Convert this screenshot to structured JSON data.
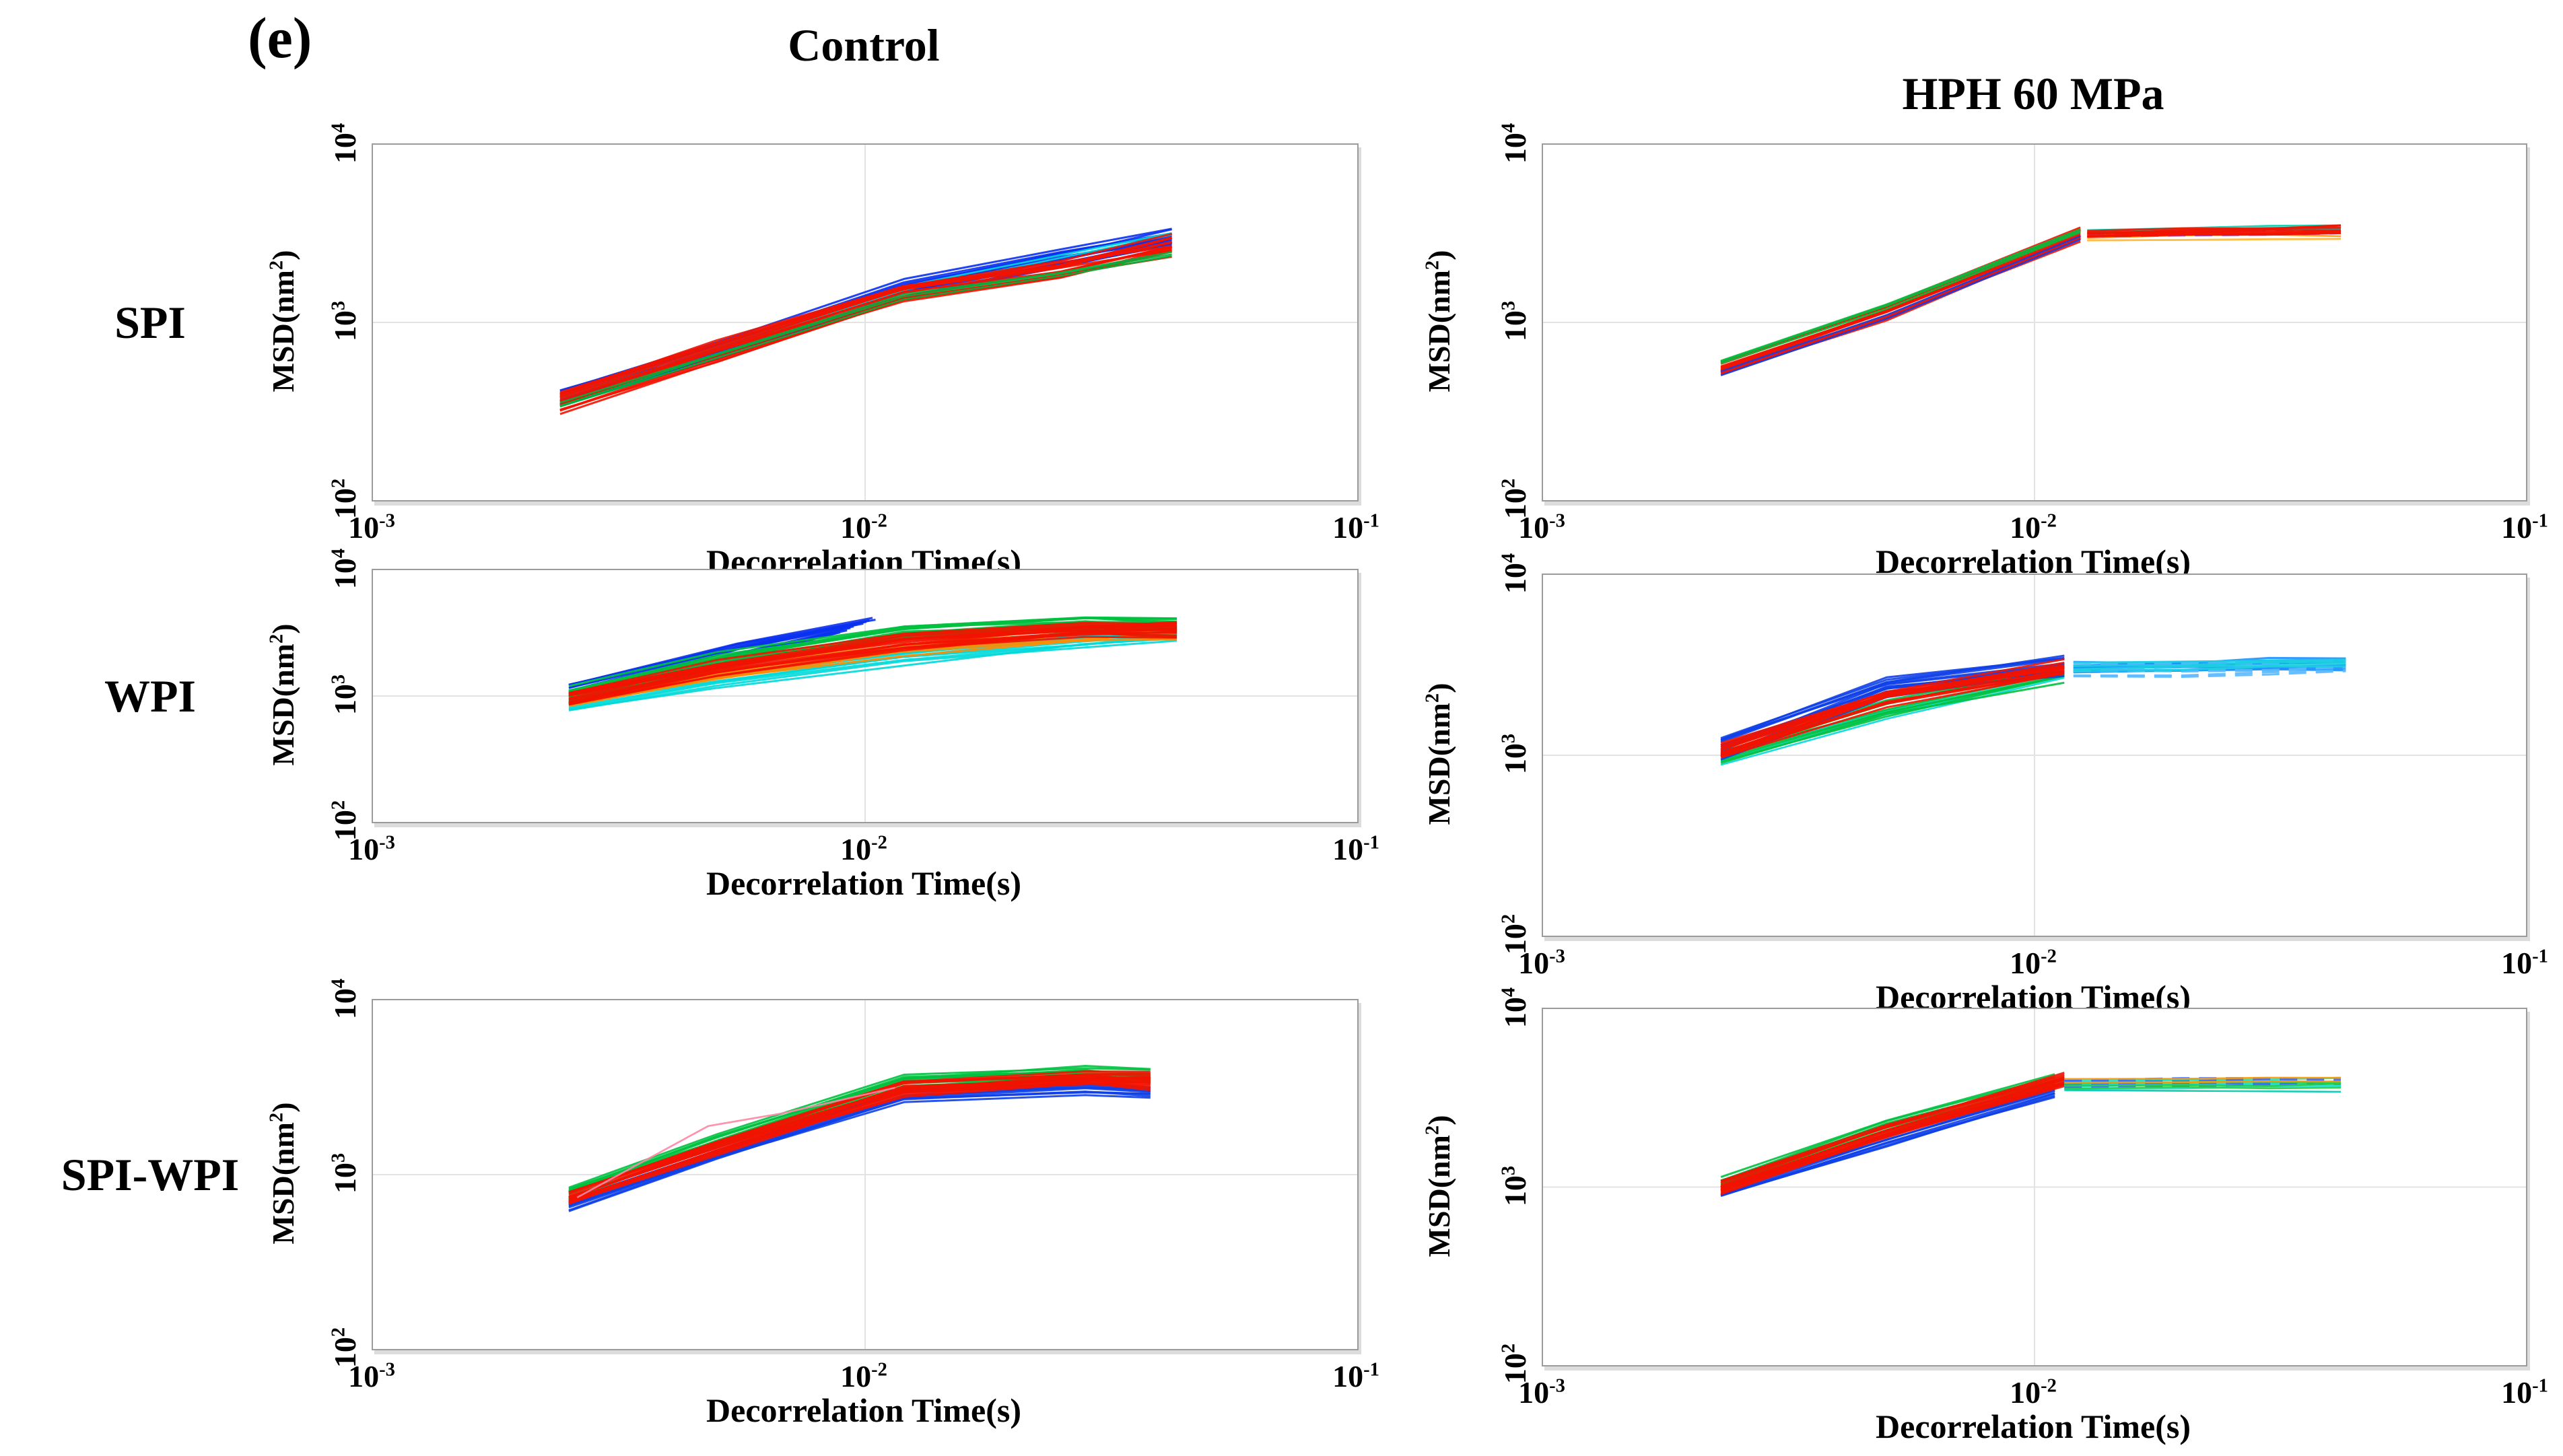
{
  "figure": {
    "panel_label": "(e)",
    "background": "#ffffff",
    "column_titles": [
      "Control",
      "HPH 60 MPa"
    ],
    "row_labels": [
      "SPI",
      "WPI",
      "SPI-WPI"
    ]
  },
  "axis_defaults": {
    "xlabel": "Decorrelation Time(s)",
    "ylabel": "MSD(nm²)",
    "ylabel_parts": {
      "base": "MSD(nm",
      "exp": "2",
      "suffix": ")"
    },
    "x_ticks": [
      {
        "base": "10",
        "exp": "-3"
      },
      {
        "base": "10",
        "exp": "-2"
      },
      {
        "base": "10",
        "exp": "-1"
      }
    ],
    "y_ticks": [
      {
        "base": "10",
        "exp": "2"
      },
      {
        "base": "10",
        "exp": "3"
      },
      {
        "base": "10",
        "exp": "4"
      }
    ],
    "xlim": [
      0.001,
      0.1
    ],
    "ylim": [
      100,
      10000
    ],
    "grid_x": 0.01,
    "grid_y": 1000,
    "frame_color": "#9b9b9b",
    "grid_color": "#e3e3e3"
  },
  "chart_data": [
    {
      "id": "spi-control",
      "row": "SPI",
      "column": "Control",
      "type": "line",
      "x_scale": "log",
      "y_scale": "log",
      "xlim": [
        0.001,
        0.1
      ],
      "ylim": [
        100,
        10000
      ],
      "xlabel": "Decorrelation Time(s)",
      "ylabel": "MSD(nm²)",
      "grid": true,
      "bands": [
        {
          "name": "blue-bundle",
          "color": "#0a31f0",
          "lines": 16,
          "spread": 0.045,
          "x": [
            0.0024,
            0.005,
            0.012,
            0.025,
            0.042
          ],
          "y": [
            375,
            705,
            1520,
            2250,
            3000
          ]
        },
        {
          "name": "cyan-line",
          "color": "#00d9d9",
          "lines": 2,
          "spread": 0.008,
          "x": [
            0.0024,
            0.005,
            0.012,
            0.025,
            0.042
          ],
          "y": [
            380,
            715,
            1555,
            2350,
            3150
          ]
        },
        {
          "name": "red-bundle",
          "color": "#f21300",
          "lines": 16,
          "spread": 0.05,
          "x": [
            0.0024,
            0.005,
            0.012,
            0.025,
            0.042
          ],
          "y": [
            360,
            685,
            1450,
            2000,
            2700
          ]
        },
        {
          "name": "green-edge",
          "color": "#00b33c",
          "lines": 3,
          "spread": 0.012,
          "x": [
            0.0024,
            0.005,
            0.012,
            0.025,
            0.042
          ],
          "y": [
            342,
            655,
            1390,
            1880,
            2420
          ]
        }
      ]
    },
    {
      "id": "spi-hph",
      "row": "SPI",
      "column": "HPH 60 MPa",
      "type": "line",
      "x_scale": "log",
      "y_scale": "log",
      "xlim": [
        0.001,
        0.1
      ],
      "ylim": [
        100,
        10000
      ],
      "xlabel": "Decorrelation Time(s)",
      "ylabel": "MSD(nm²)",
      "grid": true,
      "bands": [
        {
          "name": "red-bundle",
          "color": "#f21300",
          "lines": 18,
          "spread": 0.035,
          "x": [
            0.0023,
            0.005,
            0.0124
          ],
          "y": [
            555,
            1140,
            3120
          ]
        },
        {
          "name": "green-edge",
          "color": "#00c13f",
          "lines": 3,
          "spread": 0.01,
          "x": [
            0.0023,
            0.005,
            0.0124
          ],
          "y": [
            600,
            1230,
            3290
          ]
        },
        {
          "name": "blue-edge",
          "color": "#1040e8",
          "lines": 2,
          "spread": 0.01,
          "x": [
            0.0023,
            0.005,
            0.0124
          ],
          "y": [
            515,
            1075,
            2990
          ]
        },
        {
          "name": "tail-teal",
          "color": "#00cdb0",
          "lines": 3,
          "spread": 0.012,
          "x": [
            0.0128,
            0.02,
            0.03,
            0.042
          ],
          "y": [
            3250,
            3320,
            3380,
            3420
          ]
        },
        {
          "name": "tail-orange",
          "color": "#ff9a00",
          "lines": 3,
          "spread": 0.015,
          "x": [
            0.0128,
            0.02,
            0.03,
            0.042
          ],
          "y": [
            3000,
            3050,
            3080,
            3100
          ]
        },
        {
          "name": "tail-violet",
          "color": "#7a5cff",
          "lines": 2,
          "spread": 0.01,
          "dash": true,
          "x": [
            0.0128,
            0.02,
            0.03,
            0.042
          ],
          "y": [
            3090,
            3140,
            3190,
            3230
          ]
        },
        {
          "name": "tail-red",
          "color": "#f21300",
          "lines": 8,
          "spread": 0.02,
          "x": [
            0.0128,
            0.02,
            0.03,
            0.042
          ],
          "y": [
            3140,
            3220,
            3280,
            3330
          ]
        },
        {
          "name": "tail-lightorange",
          "color": "#ffc04d",
          "lines": 1,
          "spread": 0,
          "x": [
            0.0128,
            0.02,
            0.03,
            0.042
          ],
          "y": [
            2890,
            2915,
            2945,
            2960
          ]
        }
      ]
    },
    {
      "id": "wpi-control",
      "row": "WPI",
      "column": "Control",
      "type": "line",
      "x_scale": "log",
      "y_scale": "log",
      "xlim": [
        0.001,
        0.1
      ],
      "ylim": [
        100,
        10000
      ],
      "xlabel": "Decorrelation Time(s)",
      "ylabel": "MSD(nm²)",
      "grid": true,
      "bands": [
        {
          "name": "blue-bundle",
          "color": "#0a31f0",
          "lines": 14,
          "spread": 0.06,
          "taper": 0.18,
          "x": [
            0.0025,
            0.0055,
            0.0105
          ],
          "y": [
            1070,
            2250,
            3550
          ]
        },
        {
          "name": "cyan-bundle",
          "color": "#00d9d9",
          "lines": 10,
          "spread": 0.055,
          "x": [
            0.0025,
            0.005,
            0.012,
            0.028,
            0.043
          ],
          "y": [
            840,
            1360,
            2080,
            2820,
            3120
          ]
        },
        {
          "name": "orange-bundle",
          "color": "#ff8c00",
          "lines": 8,
          "spread": 0.045,
          "x": [
            0.0025,
            0.005,
            0.012,
            0.028,
            0.043
          ],
          "y": [
            905,
            1500,
            2380,
            3080,
            3180
          ]
        },
        {
          "name": "green-bundle",
          "color": "#00c13f",
          "lines": 14,
          "spread": 0.055,
          "x": [
            0.0025,
            0.005,
            0.012,
            0.028,
            0.043
          ],
          "y": [
            1010,
            1880,
            3250,
            3780,
            3600
          ]
        },
        {
          "name": "red-bundle",
          "color": "#f21300",
          "lines": 16,
          "spread": 0.05,
          "x": [
            0.0025,
            0.005,
            0.012,
            0.028,
            0.043
          ],
          "y": [
            950,
            1640,
            2680,
            3380,
            3380
          ]
        }
      ]
    },
    {
      "id": "wpi-hph",
      "row": "WPI",
      "column": "HPH 60 MPa",
      "type": "line",
      "x_scale": "log",
      "y_scale": "log",
      "xlim": [
        0.001,
        0.1
      ],
      "ylim": [
        100,
        10000
      ],
      "xlabel": "Decorrelation Time(s)",
      "ylabel": "MSD(nm²)",
      "grid": true,
      "bands": [
        {
          "name": "cyan-edge",
          "color": "#00d9d9",
          "lines": 3,
          "spread": 0.02,
          "x": [
            0.0023,
            0.005,
            0.0115
          ],
          "y": [
            925,
            1680,
            2780
          ]
        },
        {
          "name": "green-bundle",
          "color": "#00c13f",
          "lines": 8,
          "spread": 0.04,
          "x": [
            0.0023,
            0.005,
            0.0115
          ],
          "y": [
            975,
            1820,
            2870
          ]
        },
        {
          "name": "blue-bundle",
          "color": "#1040e8",
          "lines": 14,
          "spread": 0.05,
          "x": [
            0.0023,
            0.005,
            0.0115
          ],
          "y": [
            1110,
            2400,
            3120
          ]
        },
        {
          "name": "red-bundle",
          "color": "#f21300",
          "lines": 14,
          "spread": 0.04,
          "x": [
            0.0023,
            0.005,
            0.0115
          ],
          "y": [
            1050,
            2100,
            3000
          ]
        },
        {
          "name": "tail-dodgerblue",
          "color": "#1e90ff",
          "lines": 10,
          "spread": 0.03,
          "x": [
            0.012,
            0.02,
            0.03,
            0.043
          ],
          "y": [
            3020,
            3080,
            3140,
            3200
          ]
        },
        {
          "name": "tail-lightblue",
          "color": "#57b8ff",
          "lines": 8,
          "spread": 0.035,
          "dash": true,
          "x": [
            0.012,
            0.02,
            0.03,
            0.043
          ],
          "y": [
            2940,
            3000,
            3080,
            3140
          ]
        },
        {
          "name": "tail-cyan",
          "color": "#19cfe0",
          "lines": 4,
          "spread": 0.02,
          "x": [
            0.012,
            0.02,
            0.03,
            0.043
          ],
          "y": [
            3100,
            3160,
            3220,
            3270
          ]
        }
      ]
    },
    {
      "id": "spiwpi-control",
      "row": "SPI-WPI",
      "column": "Control",
      "type": "line",
      "x_scale": "log",
      "y_scale": "log",
      "xlim": [
        0.001,
        0.1
      ],
      "ylim": [
        100,
        10000
      ],
      "xlabel": "Decorrelation Time(s)",
      "ylabel": "MSD(nm²)",
      "grid": true,
      "bands": [
        {
          "name": "blue-bundle",
          "color": "#1040e8",
          "lines": 10,
          "spread": 0.03,
          "x": [
            0.0025,
            0.005,
            0.012,
            0.028,
            0.038
          ],
          "y": [
            665,
            1300,
            2850,
            3120,
            2980
          ]
        },
        {
          "name": "green-bundle",
          "color": "#00c13f",
          "lines": 12,
          "spread": 0.035,
          "x": [
            0.0025,
            0.005,
            0.012,
            0.028,
            0.038
          ],
          "y": [
            790,
            1560,
            3420,
            3800,
            3650
          ]
        },
        {
          "name": "red-bundle",
          "color": "#f21300",
          "lines": 18,
          "spread": 0.04,
          "x": [
            0.0025,
            0.005,
            0.012,
            0.028,
            0.038
          ],
          "y": [
            725,
            1420,
            3120,
            3550,
            3480
          ]
        },
        {
          "name": "pink-outlier",
          "color": "#ff85a6",
          "lines": 1,
          "spread": 0,
          "x": [
            0.0026,
            0.0048,
            0.0068,
            0.0115
          ],
          "y": [
            740,
            1900,
            2250,
            3150
          ]
        }
      ]
    },
    {
      "id": "spiwpi-hph",
      "row": "SPI-WPI",
      "column": "HPH 60 MPa",
      "type": "line",
      "x_scale": "log",
      "y_scale": "log",
      "xlim": [
        0.001,
        0.1
      ],
      "ylim": [
        100,
        10000
      ],
      "xlabel": "Decorrelation Time(s)",
      "ylabel": "MSD(nm²)",
      "grid": true,
      "bands": [
        {
          "name": "blue-bundle",
          "color": "#1040e8",
          "lines": 10,
          "spread": 0.03,
          "x": [
            0.0023,
            0.005,
            0.011
          ],
          "y": [
            930,
            1810,
            3480
          ]
        },
        {
          "name": "green-bundle",
          "color": "#00c13f",
          "lines": 8,
          "spread": 0.03,
          "x": [
            0.0023,
            0.005,
            0.011
          ],
          "y": [
            1060,
            2230,
            3900
          ]
        },
        {
          "name": "red-bundle",
          "color": "#f21300",
          "lines": 16,
          "spread": 0.035,
          "x": [
            0.0023,
            0.005,
            0.0115
          ],
          "y": [
            1000,
            2020,
            3960
          ]
        },
        {
          "name": "tail-cyan",
          "color": "#19e0d0",
          "lines": 6,
          "spread": 0.02,
          "x": [
            0.0115,
            0.02,
            0.03,
            0.042
          ],
          "y": [
            3780,
            3820,
            3840,
            3860
          ]
        },
        {
          "name": "tail-blue",
          "color": "#3a6cff",
          "lines": 4,
          "spread": 0.02,
          "dash": true,
          "x": [
            0.0115,
            0.02,
            0.03,
            0.042
          ],
          "y": [
            3850,
            3880,
            3900,
            3920
          ]
        },
        {
          "name": "tail-green",
          "color": "#2ecc40",
          "lines": 3,
          "spread": 0.015,
          "x": [
            0.0115,
            0.02,
            0.03,
            0.042
          ],
          "y": [
            3690,
            3720,
            3740,
            3760
          ]
        },
        {
          "name": "tail-orange",
          "color": "#ff9a00",
          "lines": 2,
          "spread": 0.012,
          "x": [
            0.0115,
            0.02,
            0.03,
            0.042
          ],
          "y": [
            3950,
            3985,
            4000,
            4010
          ]
        },
        {
          "name": "tail-teal-low",
          "color": "#00c9a7",
          "lines": 1,
          "spread": 0,
          "x": [
            0.0115,
            0.02,
            0.03,
            0.042
          ],
          "y": [
            3500,
            3470,
            3450,
            3430
          ]
        }
      ]
    }
  ]
}
